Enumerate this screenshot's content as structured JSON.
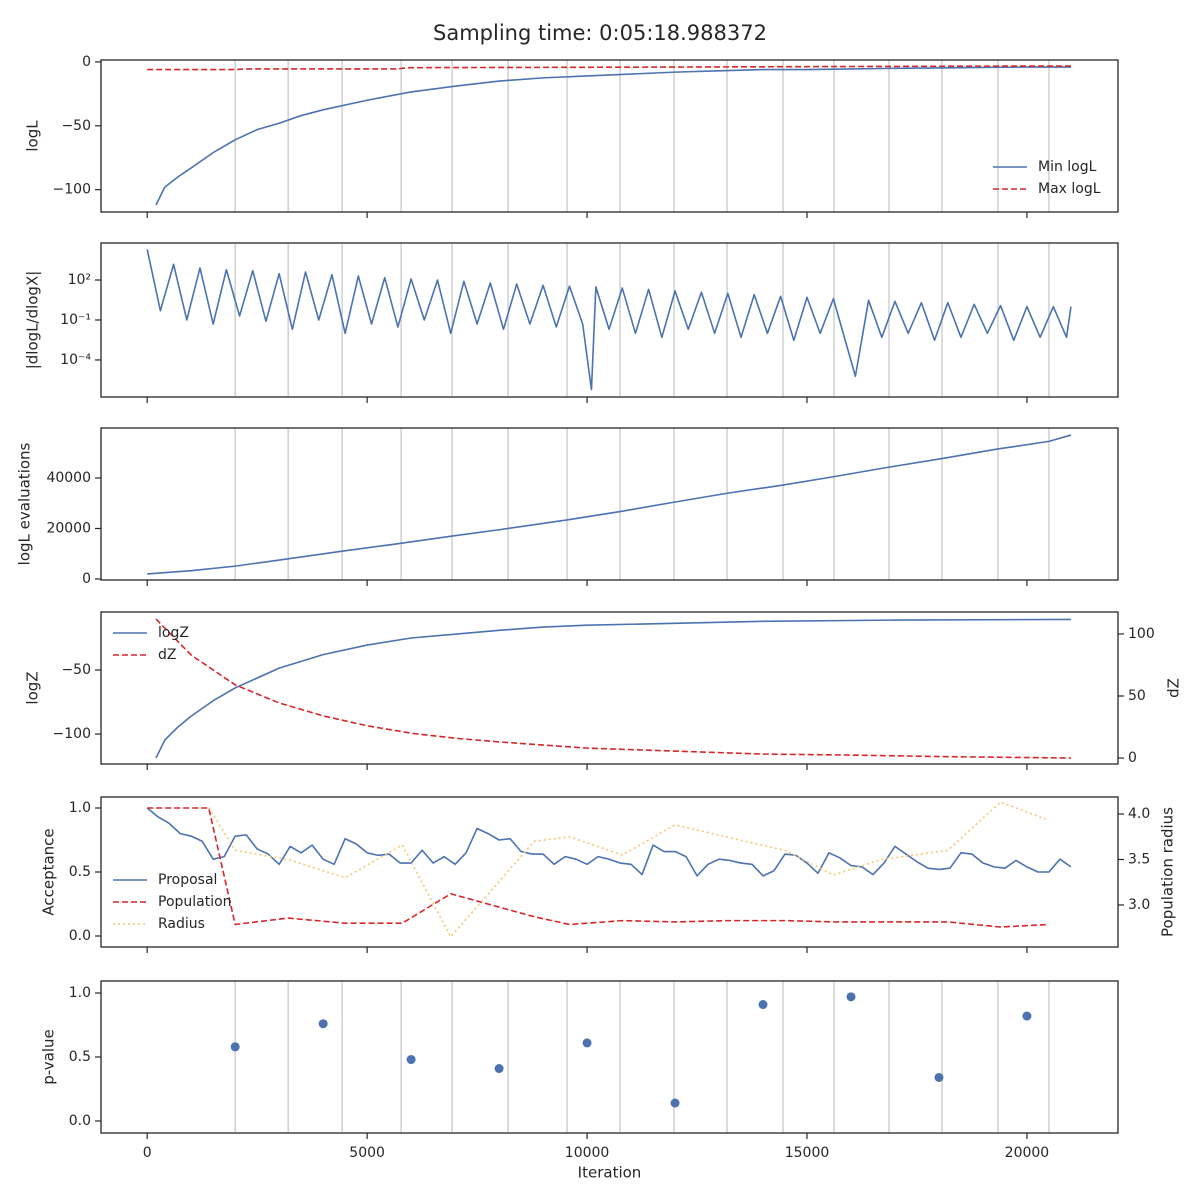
{
  "title": "Sampling time: 0:05:18.988372",
  "chart_data": [
    {
      "type": "line",
      "ylabel": "logL",
      "xlim": [
        -1050,
        22070
      ],
      "xticks": [
        0,
        5000,
        10000,
        15000,
        20000
      ],
      "ylim": [
        -117.5,
        1.5
      ],
      "yticks": [
        {
          "value": -100,
          "label": "−100"
        },
        {
          "value": -50,
          "label": "−50"
        },
        0
      ],
      "vlines": [
        2000,
        3205,
        4432,
        5773,
        6932,
        8205,
        9545,
        10750,
        11977,
        13182,
        14455,
        15614,
        16864,
        18068,
        19341,
        20500
      ],
      "legend": "lower right",
      "series": [
        {
          "name": "Min logL",
          "color": "#4c72b0",
          "linestyle": "solid",
          "x": [
            200,
            400,
            700,
            1000,
            1500,
            2000,
            2500,
            3000,
            3500,
            4000,
            5000,
            6000,
            7000,
            8000,
            9000,
            10000,
            11000,
            12000,
            13000,
            14000,
            15000,
            16000,
            17000,
            18000,
            19000,
            20000,
            21000
          ],
          "values": [
            -112,
            -98,
            -90,
            -83,
            -71,
            -61,
            -53,
            -48,
            -42,
            -37.5,
            -30,
            -23.5,
            -19,
            -15,
            -12.5,
            -11,
            -9.5,
            -8,
            -7,
            -6,
            -6,
            -5.5,
            -5,
            -4.7,
            -4.3,
            -4,
            -4
          ]
        },
        {
          "name": "Max logL",
          "color": "#d62728",
          "linestyle": "dashed",
          "x": [
            0,
            2000,
            2200,
            5700,
            5900,
            10000,
            14000,
            19000,
            21000
          ],
          "values": [
            -6,
            -6,
            -5.5,
            -5.5,
            -4.5,
            -4.2,
            -3.8,
            -3.3,
            -3.2
          ]
        }
      ]
    },
    {
      "type": "line",
      "ylabel": "|dlogL/dlogX|",
      "yscale": "log",
      "xlim": [
        -1050,
        22070
      ],
      "xticks": [
        0,
        5000,
        10000,
        15000,
        20000
      ],
      "ylim": [
        1.66e-07,
        60000
      ],
      "yticks": [
        {
          "value": 0.0001,
          "label": "10⁻⁴"
        },
        {
          "value": 0.1,
          "label": "10⁻¹"
        },
        {
          "value": 100,
          "label": "10²"
        }
      ],
      "vlines": [
        2000,
        3205,
        4432,
        5773,
        6932,
        8205,
        9545,
        10750,
        11977,
        13182,
        14455,
        15614,
        16864,
        18068,
        19341,
        20500
      ],
      "series": [
        {
          "color": "#4c72b0",
          "linestyle": "solid",
          "x": [
            0,
            300,
            600,
            900,
            1200,
            1500,
            1800,
            2100,
            2400,
            2700,
            3000,
            3300,
            3600,
            3900,
            4200,
            4500,
            4800,
            5100,
            5400,
            5700,
            6000,
            6300,
            6600,
            6900,
            7200,
            7500,
            7800,
            8100,
            8400,
            8700,
            9000,
            9300,
            9600,
            9900,
            10100,
            10200,
            10500,
            10800,
            11100,
            11400,
            11700,
            12000,
            12300,
            12600,
            12900,
            13200,
            13500,
            13800,
            14100,
            14400,
            14700,
            15000,
            15300,
            15600,
            16100,
            16400,
            16700,
            17000,
            17300,
            17600,
            17900,
            18200,
            18500,
            18800,
            19100,
            19400,
            19700,
            20000,
            20300,
            20600,
            20900,
            21000
          ],
          "values": [
            20000,
            0.5,
            1500,
            0.1,
            800,
            0.05,
            600,
            0.2,
            500,
            0.08,
            300,
            0.02,
            400,
            0.1,
            250,
            0.01,
            200,
            0.05,
            150,
            0.03,
            120,
            0.1,
            100,
            0.01,
            80,
            0.05,
            60,
            0.02,
            50,
            0.05,
            40,
            0.03,
            35,
            0.05,
            6e-07,
            30,
            0.02,
            25,
            0.01,
            20,
            0.005,
            15,
            0.02,
            12,
            0.01,
            10,
            0.005,
            8,
            0.01,
            6,
            0.003,
            5,
            0.01,
            4,
            6e-06,
            3,
            0.005,
            2.5,
            0.01,
            2,
            0.003,
            2,
            0.005,
            1.5,
            0.01,
            1.2,
            0.003,
            1,
            0.005,
            1,
            0.005,
            1
          ]
        }
      ]
    },
    {
      "type": "line",
      "ylabel": "logL evaluations",
      "xlim": [
        -1050,
        22070
      ],
      "xticks": [
        0,
        5000,
        10000,
        15000,
        20000
      ],
      "ylim": [
        -400,
        59800
      ],
      "yticks": [
        0,
        20000,
        40000
      ],
      "vlines": [
        2000,
        3205,
        4432,
        5773,
        6932,
        8205,
        9545,
        10750,
        11977,
        13182,
        14455,
        15614,
        16864,
        18068,
        19341,
        20500
      ],
      "series": [
        {
          "color": "#4c72b0",
          "linestyle": "solid",
          "x": [
            0,
            1000,
            2000,
            3000,
            4432,
            5500,
            6932,
            8000,
            9545,
            10750,
            12000,
            13200,
            14455,
            15600,
            16864,
            18000,
            19341,
            20500,
            21000
          ],
          "values": [
            2000,
            3300,
            5100,
            7500,
            11000,
            13500,
            17000,
            19500,
            23400,
            26700,
            30500,
            34000,
            37200,
            40500,
            44300,
            47500,
            51500,
            54500,
            57000
          ]
        }
      ]
    },
    {
      "type": "line",
      "ylabel": "logZ",
      "y2label": "dZ",
      "xlim": [
        -1050,
        22070
      ],
      "xticks": [
        0,
        5000,
        10000,
        15000,
        20000
      ],
      "ylim": [
        -123.4,
        -4.7
      ],
      "yticks": [
        {
          "value": -100,
          "label": "−100"
        },
        {
          "value": -50,
          "label": "−50"
        }
      ],
      "y2lim": [
        -4.8,
        117.7
      ],
      "y2ticks": [
        0,
        50,
        100
      ],
      "legend": "upper left",
      "series": [
        {
          "name": "logZ",
          "color": "#4c72b0",
          "linestyle": "solid",
          "x": [
            200,
            400,
            700,
            1000,
            1500,
            2000,
            3000,
            4000,
            5000,
            6000,
            7000,
            8000,
            9000,
            10000,
            12000,
            14000,
            17000,
            21000
          ],
          "values": [
            -118.75,
            -104.7,
            -94.5,
            -86,
            -74,
            -64,
            -48.5,
            -38,
            -30.5,
            -25,
            -22,
            -19,
            -16.5,
            -15,
            -13.5,
            -12,
            -11,
            -10.5
          ]
        },
        {
          "name": "dZ",
          "color": "#d62728",
          "linestyle": "dashed",
          "axis": "y2",
          "x": [
            200,
            1000,
            2000,
            3000,
            4000,
            5000,
            6000,
            7000,
            8000,
            9000,
            10000,
            12000,
            14000,
            16000,
            18000,
            21000
          ],
          "values": [
            112,
            83,
            59,
            44.4,
            34,
            26,
            20,
            16,
            13,
            10.5,
            8,
            5.6,
            3.2,
            2.4,
            1.2,
            0
          ]
        }
      ]
    },
    {
      "type": "line",
      "ylabel": "Acceptance",
      "y2label": "Population radius",
      "xlim": [
        -1050,
        22070
      ],
      "xticks": [
        0,
        5000,
        10000,
        15000,
        20000
      ],
      "ylim": [
        -0.086,
        1.086
      ],
      "yticks": [
        {
          "value": 0,
          "label": "0.0"
        },
        0.5,
        {
          "value": 1,
          "label": "1.0"
        }
      ],
      "y2lim": [
        2.538,
        4.187
      ],
      "y2ticks": [
        {
          "value": 3,
          "label": "3.0"
        },
        3.5,
        {
          "value": 4,
          "label": "4.0"
        }
      ],
      "legend": "lower left",
      "series": [
        {
          "name": "Proposal",
          "color": "#4c72b0",
          "linestyle": "solid",
          "x": [
            0,
            250,
            500,
            750,
            1000,
            1250,
            1500,
            1750,
            2000,
            2250,
            2500,
            2750,
            3000,
            3250,
            3500,
            3750,
            4000,
            4250,
            4500,
            4750,
            5000,
            5250,
            5500,
            5750,
            6000,
            6250,
            6500,
            6750,
            7000,
            7250,
            7500,
            7750,
            8000,
            8250,
            8500,
            8750,
            9000,
            9250,
            9500,
            9750,
            10000,
            10250,
            10500,
            10750,
            11000,
            11250,
            11500,
            11750,
            12000,
            12250,
            12500,
            12750,
            13000,
            13250,
            13500,
            13750,
            14000,
            14250,
            14500,
            14750,
            15000,
            15250,
            15500,
            15750,
            16000,
            16250,
            16500,
            16750,
            17000,
            17250,
            17500,
            17750,
            18000,
            18250,
            18500,
            18750,
            19000,
            19250,
            19500,
            19750,
            20000,
            20250,
            20500,
            20750,
            21000
          ],
          "values": [
            1.0,
            0.93,
            0.88,
            0.8,
            0.78,
            0.74,
            0.6,
            0.62,
            0.78,
            0.79,
            0.68,
            0.64,
            0.56,
            0.7,
            0.65,
            0.71,
            0.6,
            0.56,
            0.76,
            0.72,
            0.65,
            0.63,
            0.64,
            0.57,
            0.57,
            0.67,
            0.57,
            0.62,
            0.56,
            0.65,
            0.84,
            0.8,
            0.75,
            0.76,
            0.66,
            0.64,
            0.64,
            0.56,
            0.62,
            0.6,
            0.56,
            0.62,
            0.6,
            0.57,
            0.56,
            0.48,
            0.71,
            0.66,
            0.66,
            0.62,
            0.47,
            0.56,
            0.6,
            0.59,
            0.57,
            0.56,
            0.47,
            0.51,
            0.64,
            0.63,
            0.57,
            0.49,
            0.65,
            0.61,
            0.55,
            0.54,
            0.48,
            0.57,
            0.7,
            0.64,
            0.58,
            0.53,
            0.52,
            0.53,
            0.65,
            0.64,
            0.57,
            0.54,
            0.53,
            0.59,
            0.54,
            0.5,
            0.5,
            0.6,
            0.54
          ]
        },
        {
          "name": "Population",
          "color": "#d62728",
          "linestyle": "dashed",
          "x": [
            0,
            1400,
            2000,
            3200,
            4500,
            5800,
            6900,
            8800,
            9600,
            10800,
            12000,
            13200,
            14500,
            15600,
            17000,
            18200,
            19400,
            20500
          ],
          "values": [
            1.0,
            1.0,
            0.09,
            0.14,
            0.1,
            0.1,
            0.33,
            0.15,
            0.09,
            0.12,
            0.11,
            0.12,
            0.12,
            0.11,
            0.11,
            0.11,
            0.07,
            0.09
          ]
        },
        {
          "name": "Radius",
          "color": "#f5c76e",
          "linestyle": "dotted",
          "axis": "y2",
          "x": [
            1400,
            2000,
            3200,
            4500,
            5800,
            6900,
            8800,
            9600,
            10800,
            12000,
            14500,
            15600,
            16700,
            18200,
            19400,
            20500
          ],
          "values": [
            4.07,
            3.6,
            3.5,
            3.3,
            3.66,
            2.65,
            3.7,
            3.75,
            3.55,
            3.88,
            3.6,
            3.33,
            3.5,
            3.6,
            4.13,
            3.93
          ]
        }
      ]
    },
    {
      "type": "scatter",
      "ylabel": "p-value",
      "xlabel": "Iteration",
      "xlim": [
        -1050,
        22070
      ],
      "xticks": [
        0,
        5000,
        10000,
        15000,
        20000
      ],
      "ylim": [
        -0.094,
        1.094
      ],
      "yticks": [
        {
          "value": 0,
          "label": "0.0"
        },
        0.5,
        {
          "value": 1,
          "label": "1.0"
        }
      ],
      "vlines": [
        2000,
        3205,
        4432,
        5773,
        6932,
        8205,
        9545,
        10750,
        11977,
        13182,
        14455,
        15614,
        16864,
        18068,
        19341,
        20500
      ],
      "series": [
        {
          "color": "#4c72b0",
          "x": [
            2000,
            4000,
            6000,
            8000,
            10000,
            12000,
            14000,
            16000,
            18000,
            20000
          ],
          "values": [
            0.58,
            0.76,
            0.48,
            0.41,
            0.61,
            0.14,
            0.91,
            0.97,
            0.34,
            0.82
          ]
        }
      ]
    }
  ]
}
